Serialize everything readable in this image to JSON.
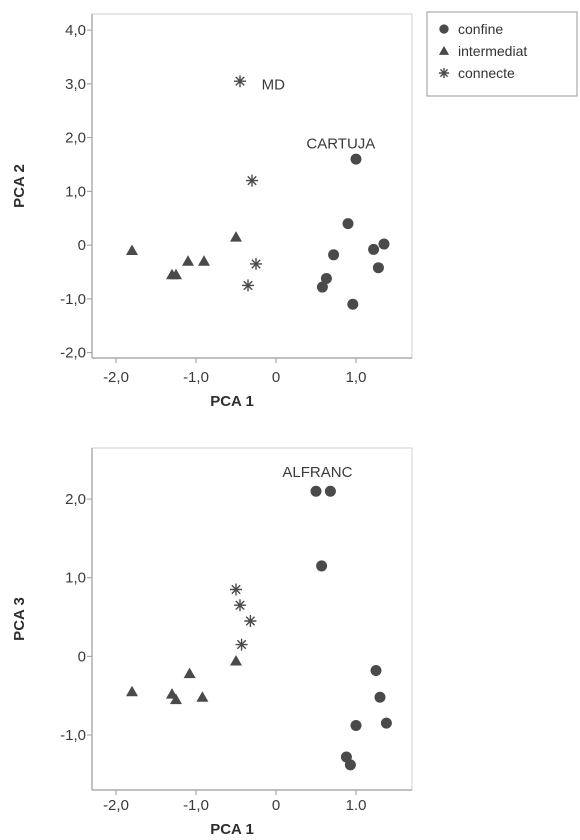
{
  "legend": {
    "entries": [
      {
        "label": "confine",
        "marker": "circle"
      },
      {
        "label": "intermediat",
        "marker": "triangle"
      },
      {
        "label": "connecte",
        "marker": "star"
      }
    ]
  },
  "chart_data": [
    {
      "type": "scatter",
      "title": "",
      "xlabel": "PCA 1",
      "ylabel": "PCA 2",
      "xlim": [
        -2.3,
        1.7
      ],
      "ylim": [
        -2.1,
        4.3
      ],
      "grid": false,
      "xticks": [
        -2,
        -1,
        0,
        1
      ],
      "xtick_labels": [
        "-2,0",
        "-1,0",
        "0",
        "1,0"
      ],
      "yticks": [
        4,
        3,
        2,
        1,
        0,
        -1,
        -2
      ],
      "ytick_labels": [
        "4,0",
        "3,0",
        "2,0",
        "1,0",
        "0",
        "-1,0",
        "-2,0"
      ],
      "series": [
        {
          "name": "confine",
          "marker": "circle",
          "points": [
            [
              1.0,
              1.6
            ],
            [
              0.9,
              0.4
            ],
            [
              0.72,
              -0.18
            ],
            [
              0.63,
              -0.62
            ],
            [
              0.58,
              -0.78
            ],
            [
              0.96,
              -1.1
            ],
            [
              1.22,
              -0.08
            ],
            [
              1.35,
              0.02
            ],
            [
              1.28,
              -0.42
            ]
          ]
        },
        {
          "name": "intermediat",
          "marker": "triangle",
          "points": [
            [
              -1.8,
              -0.1
            ],
            [
              -1.3,
              -0.55
            ],
            [
              -1.25,
              -0.55
            ],
            [
              -1.1,
              -0.3
            ],
            [
              -0.9,
              -0.3
            ],
            [
              -0.5,
              0.15
            ]
          ]
        },
        {
          "name": "connecte",
          "marker": "star",
          "points": [
            [
              -0.45,
              3.05
            ],
            [
              -0.3,
              1.2
            ],
            [
              -0.25,
              -0.35
            ],
            [
              -0.35,
              -0.75
            ]
          ]
        }
      ],
      "annotations": [
        {
          "text": "MD",
          "x": -0.18,
          "y": 2.9
        },
        {
          "text": "CARTUJA",
          "x": 0.38,
          "y": 1.8
        }
      ]
    },
    {
      "type": "scatter",
      "title": "",
      "xlabel": "PCA 1",
      "ylabel": "PCA 3",
      "xlim": [
        -2.3,
        1.7
      ],
      "ylim": [
        -1.7,
        2.65
      ],
      "grid": false,
      "xticks": [
        -2,
        -1,
        0,
        1
      ],
      "xtick_labels": [
        "-2,0",
        "-1,0",
        "0",
        "1.0"
      ],
      "yticks": [
        2,
        1,
        0,
        -1
      ],
      "ytick_labels": [
        "2,0",
        "1,0",
        "0",
        "-1,0"
      ],
      "series": [
        {
          "name": "confine",
          "marker": "circle",
          "points": [
            [
              0.5,
              2.1
            ],
            [
              0.68,
              2.1
            ],
            [
              0.57,
              1.15
            ],
            [
              1.25,
              -0.18
            ],
            [
              1.3,
              -0.52
            ],
            [
              1.38,
              -0.85
            ],
            [
              1.0,
              -0.88
            ],
            [
              0.88,
              -1.28
            ],
            [
              0.93,
              -1.38
            ]
          ]
        },
        {
          "name": "intermediat",
          "marker": "triangle",
          "points": [
            [
              -1.8,
              -0.45
            ],
            [
              -1.3,
              -0.48
            ],
            [
              -1.25,
              -0.55
            ],
            [
              -1.08,
              -0.22
            ],
            [
              -0.92,
              -0.52
            ],
            [
              -0.5,
              -0.06
            ]
          ]
        },
        {
          "name": "connecte",
          "marker": "star",
          "points": [
            [
              -0.5,
              0.85
            ],
            [
              -0.45,
              0.65
            ],
            [
              -0.32,
              0.45
            ],
            [
              -0.43,
              0.15
            ]
          ]
        }
      ],
      "annotations": [
        {
          "text": "ALFRANC",
          "x": 0.08,
          "y": 2.28
        }
      ]
    }
  ]
}
